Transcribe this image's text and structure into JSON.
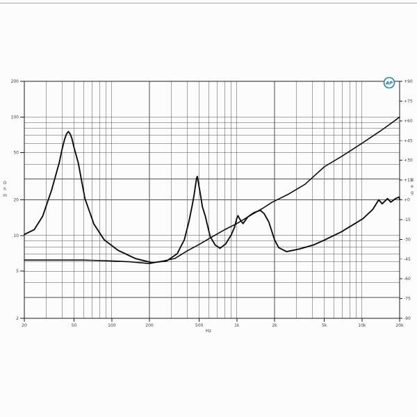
{
  "page": {
    "background": "#fcfcfc",
    "has_top_border": true
  },
  "logo": {
    "text": "AP",
    "ring_color": "#2c84a0",
    "inner_color": "#eef8fa",
    "text_color": "#1d7291"
  },
  "chart_data": {
    "type": "line",
    "title": "",
    "legend_position": "none",
    "grid": true,
    "grid_color": "#4d4d4d",
    "frame_color": "#1a1a1a",
    "label_color": "#3d3d3d",
    "x_axis": {
      "unit": "Hz",
      "scale": "log",
      "min": 20,
      "max": 20000,
      "labeled_ticks": [
        {
          "v": 20,
          "t": "20"
        },
        {
          "v": 50,
          "t": "50"
        },
        {
          "v": 100,
          "t": "100"
        },
        {
          "v": 200,
          "t": "200"
        },
        {
          "v": 500,
          "t": "500"
        },
        {
          "v": 1000,
          "t": "1k"
        },
        {
          "v": 2000,
          "t": "2k"
        },
        {
          "v": 5000,
          "t": "5k"
        },
        {
          "v": 10000,
          "t": "10k"
        },
        {
          "v": 20000,
          "t": "20k"
        }
      ],
      "minor_ticks": [
        30,
        40,
        60,
        70,
        80,
        90,
        300,
        400,
        600,
        700,
        800,
        900,
        3000,
        4000,
        6000,
        7000,
        8000,
        9000
      ]
    },
    "y_left": {
      "unit": "Ohm",
      "scale": "log",
      "min": 2,
      "max": 200,
      "labeled_ticks": [
        {
          "v": 200,
          "t": "200"
        },
        {
          "v": 100,
          "t": "100"
        },
        {
          "v": 50,
          "t": "50"
        },
        {
          "v": 20,
          "t": "20"
        },
        {
          "v": 10,
          "t": "10"
        },
        {
          "v": 5,
          "t": "5"
        },
        {
          "v": 2,
          "t": "2"
        }
      ],
      "minor_ticks": [
        3,
        4,
        6,
        7,
        8,
        9,
        30,
        40,
        60,
        70,
        80,
        90
      ]
    },
    "y_right": {
      "unit": "deg",
      "scale": "linear",
      "min": -90,
      "max": 90,
      "labeled_ticks": [
        {
          "v": 90,
          "t": "+90"
        },
        {
          "v": 75,
          "t": "+75"
        },
        {
          "v": 60,
          "t": "+60"
        },
        {
          "v": 45,
          "t": "+45"
        },
        {
          "v": 30,
          "t": "+30"
        },
        {
          "v": 15,
          "t": "+15"
        },
        {
          "v": 0,
          "t": "+0"
        },
        {
          "v": -15,
          "t": "-15"
        },
        {
          "v": -30,
          "t": "-30"
        },
        {
          "v": -45,
          "t": "-45"
        },
        {
          "v": -60,
          "t": "-60"
        },
        {
          "v": -75,
          "t": "-75"
        },
        {
          "v": -90,
          "t": "-90"
        }
      ]
    },
    "series": [
      {
        "id": "impedance-magnitude-curve",
        "axis": "left",
        "color": "#0d0d0d",
        "width": 1.9,
        "points": [
          [
            20,
            10.2
          ],
          [
            24,
            11.2
          ],
          [
            28,
            14.5
          ],
          [
            33,
            24
          ],
          [
            38,
            41
          ],
          [
            40,
            53
          ],
          [
            42,
            65
          ],
          [
            43.5,
            72
          ],
          [
            45,
            75.3
          ],
          [
            46.5,
            72
          ],
          [
            48,
            66
          ],
          [
            50,
            55
          ],
          [
            54,
            41
          ],
          [
            61,
            20.5
          ],
          [
            72,
            12.5
          ],
          [
            87,
            9.2
          ],
          [
            112,
            7.5
          ],
          [
            154,
            6.4
          ],
          [
            210,
            5.9
          ],
          [
            275,
            6.1
          ],
          [
            333,
            7.0
          ],
          [
            380,
            9.2
          ],
          [
            413,
            13
          ],
          [
            440,
            18
          ],
          [
            455,
            22
          ],
          [
            468,
            27
          ],
          [
            477,
            30.5
          ],
          [
            483,
            31.5
          ],
          [
            490,
            29
          ],
          [
            500,
            25.5
          ],
          [
            512,
            22
          ],
          [
            530,
            17.5
          ],
          [
            558,
            14.7
          ],
          [
            612,
            9.8
          ],
          [
            672,
            8.3
          ],
          [
            733,
            7.8
          ],
          [
            815,
            8.5
          ],
          [
            900,
            10.1
          ],
          [
            960,
            11.8
          ],
          [
            1000,
            14
          ],
          [
            1020,
            14.7
          ],
          [
            1045,
            14
          ],
          [
            1075,
            13.3
          ],
          [
            1120,
            12.6
          ],
          [
            1220,
            14.3
          ],
          [
            1370,
            15.6
          ],
          [
            1540,
            16.3
          ],
          [
            1650,
            15.3
          ],
          [
            1800,
            13
          ],
          [
            2000,
            9.2
          ],
          [
            2160,
            7.9
          ],
          [
            2500,
            7.3
          ],
          [
            3170,
            7.7
          ],
          [
            4080,
            8.3
          ],
          [
            5060,
            9.2
          ],
          [
            6800,
            10.7
          ],
          [
            8800,
            12.6
          ],
          [
            10200,
            13.9
          ],
          [
            12200,
            16.6
          ],
          [
            13600,
            20
          ],
          [
            14500,
            18.5
          ],
          [
            16000,
            20.5
          ],
          [
            17000,
            19.1
          ],
          [
            18600,
            20.5
          ],
          [
            19800,
            21.1
          ],
          [
            20000,
            20.3
          ]
        ]
      },
      {
        "id": "rising-line-curve",
        "axis": "left",
        "color": "#0d0d0d",
        "width": 1.6,
        "points": [
          [
            20,
            6.2
          ],
          [
            60,
            6.2
          ],
          [
            100,
            6.1
          ],
          [
            140,
            6.0
          ],
          [
            200,
            5.8
          ],
          [
            260,
            6.1
          ],
          [
            320,
            6.4
          ],
          [
            400,
            7.4
          ],
          [
            500,
            8.4
          ],
          [
            630,
            9.7
          ],
          [
            800,
            11.2
          ],
          [
            1000,
            12.6
          ],
          [
            1300,
            14.9
          ],
          [
            1600,
            16.9
          ],
          [
            1900,
            19
          ],
          [
            2600,
            22.4
          ],
          [
            3500,
            27
          ],
          [
            5000,
            38
          ],
          [
            7000,
            47
          ],
          [
            10000,
            60
          ],
          [
            14000,
            76
          ],
          [
            18000,
            92
          ],
          [
            20000,
            100
          ]
        ]
      }
    ]
  }
}
